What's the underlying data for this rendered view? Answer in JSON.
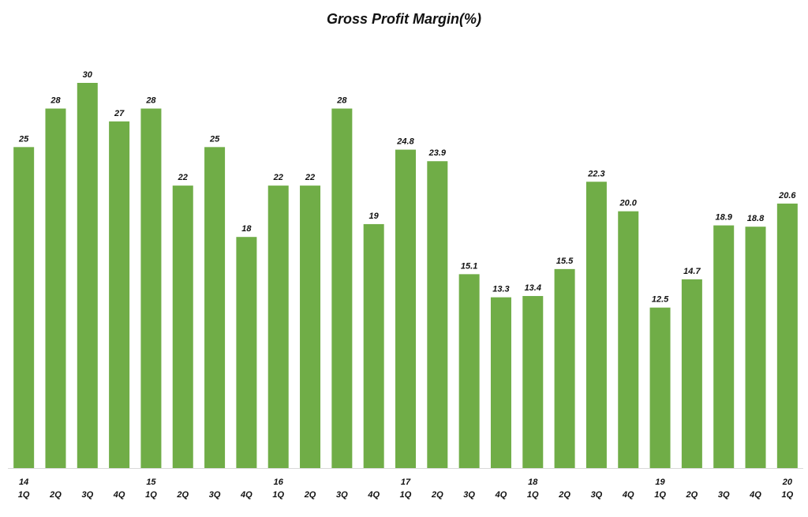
{
  "chart_data": {
    "type": "bar",
    "title": "Gross Profit Margin(%)",
    "xlabel": "",
    "ylabel": "",
    "ylim": [
      0,
      30
    ],
    "grid": false,
    "legend": "none",
    "colors": {
      "bar": "#70ad47",
      "text": "#111111",
      "axis": "#d9d9d9"
    },
    "categories": [
      {
        "year": "14",
        "quarter": "1Q"
      },
      {
        "year": "",
        "quarter": "2Q"
      },
      {
        "year": "",
        "quarter": "3Q"
      },
      {
        "year": "",
        "quarter": "4Q"
      },
      {
        "year": "15",
        "quarter": "1Q"
      },
      {
        "year": "",
        "quarter": "2Q"
      },
      {
        "year": "",
        "quarter": "3Q"
      },
      {
        "year": "",
        "quarter": "4Q"
      },
      {
        "year": "16",
        "quarter": "1Q"
      },
      {
        "year": "",
        "quarter": "2Q"
      },
      {
        "year": "",
        "quarter": "3Q"
      },
      {
        "year": "",
        "quarter": "4Q"
      },
      {
        "year": "17",
        "quarter": "1Q"
      },
      {
        "year": "",
        "quarter": "2Q"
      },
      {
        "year": "",
        "quarter": "3Q"
      },
      {
        "year": "",
        "quarter": "4Q"
      },
      {
        "year": "18",
        "quarter": "1Q"
      },
      {
        "year": "",
        "quarter": "2Q"
      },
      {
        "year": "",
        "quarter": "3Q"
      },
      {
        "year": "",
        "quarter": "4Q"
      },
      {
        "year": "19",
        "quarter": "1Q"
      },
      {
        "year": "",
        "quarter": "2Q"
      },
      {
        "year": "",
        "quarter": "3Q"
      },
      {
        "year": "",
        "quarter": "4Q"
      },
      {
        "year": "20",
        "quarter": "1Q"
      }
    ],
    "values": [
      25,
      28,
      30,
      27,
      28,
      22,
      25,
      18,
      22,
      22,
      28,
      19,
      24.8,
      23.9,
      15.1,
      13.3,
      13.4,
      15.5,
      22.3,
      20.0,
      12.5,
      14.7,
      18.9,
      18.8,
      20.6
    ],
    "value_labels": [
      "25",
      "28",
      "30",
      "27",
      "28",
      "22",
      "25",
      "18",
      "22",
      "22",
      "28",
      "19",
      "24.8",
      "23.9",
      "15.1",
      "13.3",
      "13.4",
      "15.5",
      "22.3",
      "20.0",
      "12.5",
      "14.7",
      "18.9",
      "18.8",
      "20.6"
    ]
  }
}
